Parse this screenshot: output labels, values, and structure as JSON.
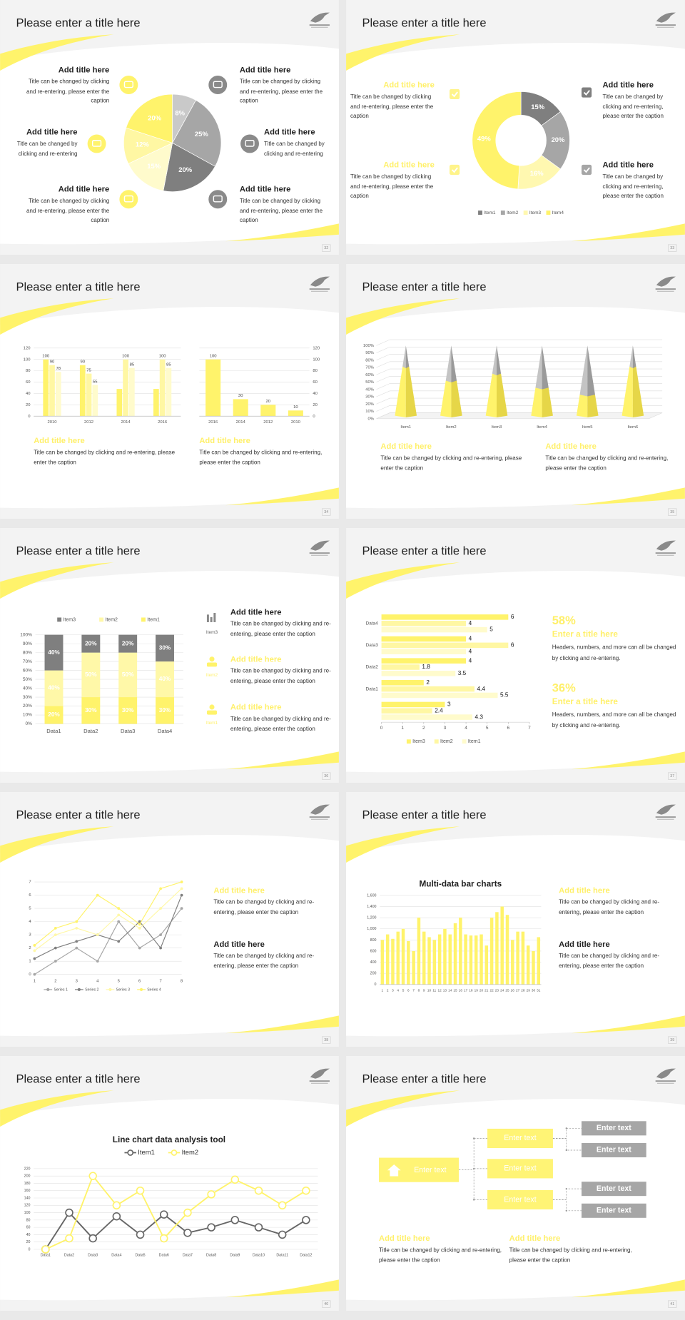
{
  "slides": [
    {
      "title": "Please enter a title here",
      "page": 32,
      "chart": {
        "type": "pie",
        "values": [
          8,
          25,
          20,
          15,
          12,
          20
        ],
        "value_labels": [
          "8%",
          "25%",
          "20%",
          "15%",
          "12%",
          "20%"
        ],
        "colors": [
          "#c9c9c9",
          "#a6a6a6",
          "#7f7f7f",
          "#fffbcc",
          "#fff7a3",
          "#fff36b"
        ]
      },
      "blocks": [
        {
          "heading": "Add title here",
          "text": "Title can be changed by clicking and re-entering, please enter the caption"
        },
        {
          "heading": "Add title here",
          "text": "Title can be changed by clicking and re-entering"
        },
        {
          "heading": "Add title here",
          "text": "Title can be changed by clicking and re-entering, please enter the caption"
        },
        {
          "heading": "Add title here",
          "text": "Title can be changed by clicking and re-entering, please enter the caption"
        },
        {
          "heading": "Add title here",
          "text": "Title can be changed by clicking and re-entering"
        },
        {
          "heading": "Add title here",
          "text": "Title can be changed by clicking and re-entering, please enter the caption"
        }
      ]
    },
    {
      "title": "Please enter a title here",
      "page": 33,
      "chart": {
        "type": "donut",
        "categories": [
          "Item1",
          "Item2",
          "Item3",
          "Item4"
        ],
        "values": [
          15,
          20,
          16,
          49
        ],
        "value_labels": [
          "15%",
          "20%",
          "16%",
          "49%"
        ],
        "colors": [
          "#7f7f7f",
          "#a6a6a6",
          "#fff8b0",
          "#fff36b"
        ]
      },
      "blocks": [
        {
          "heading": "Add title here",
          "text": "Title can be changed by clicking and re-entering, please enter the caption"
        },
        {
          "heading": "Add title here",
          "text": "Title can be changed by clicking and re-entering, please enter the caption"
        },
        {
          "heading": "Add title here",
          "text": "Title can be changed by clicking and re-entering, please enter the caption"
        },
        {
          "heading": "Add title here",
          "text": "Title can be changed by clicking and re-entering, please enter the caption"
        }
      ]
    },
    {
      "title": "Please enter a title here",
      "page": 34,
      "charts": [
        {
          "type": "bar",
          "categories": [
            "2010",
            "2012",
            "2014",
            "2016"
          ],
          "ylim": [
            0,
            120
          ],
          "yticks": [
            0,
            20,
            40,
            60,
            80,
            100,
            120
          ],
          "series": [
            {
              "color": "#fff36b",
              "values": [
                100,
                90,
                48,
                48
              ],
              "value_labels": [
                "100",
                "90",
                null,
                null
              ]
            },
            {
              "color": "#fff7a3",
              "values": [
                90,
                75,
                100,
                100
              ],
              "value_labels": [
                "90",
                "75",
                "100",
                "100"
              ]
            },
            {
              "color": "#fffbcc",
              "values": [
                78,
                55,
                85,
                85
              ],
              "value_labels": [
                "78",
                "55",
                "85",
                "85"
              ]
            }
          ]
        },
        {
          "type": "bar",
          "categories": [
            "2016",
            "2014",
            "2012",
            "2010"
          ],
          "values": [
            100,
            30,
            20,
            10
          ],
          "color": "#fff36b",
          "ylim": [
            0,
            120
          ],
          "yticks": [
            0,
            20,
            40,
            60,
            80,
            100,
            120
          ]
        }
      ],
      "blocks": [
        {
          "heading": "Add title here",
          "text": "Title can be changed by clicking and re-entering, please enter the caption"
        },
        {
          "heading": "Add title here",
          "text": "Title can be changed by clicking and re-entering, please enter the caption"
        }
      ]
    },
    {
      "title": "Please enter a title here",
      "page": 35,
      "chart": {
        "type": "cone",
        "categories": [
          "Item1",
          "Item2",
          "Item3",
          "Item4",
          "Item5",
          "Item6"
        ],
        "ylim": [
          0,
          100
        ],
        "yticks": [
          {
            "value": 0,
            "label": "0%"
          },
          {
            "value": 10,
            "label": "10%"
          },
          {
            "value": 20,
            "label": "20%"
          },
          {
            "value": 30,
            "label": "30%"
          },
          {
            "value": 40,
            "label": "40%"
          },
          {
            "value": 50,
            "label": "50%"
          },
          {
            "value": 60,
            "label": "60%"
          },
          {
            "value": 70,
            "label": "70%"
          },
          {
            "value": 80,
            "label": "80%"
          },
          {
            "value": 90,
            "label": "90%"
          },
          {
            "value": 100,
            "label": "100%"
          }
        ],
        "series": [
          {
            "color": "#fff36b",
            "values": [
              70,
              50,
              60,
              40,
              30,
              70
            ]
          },
          {
            "color": "#c4c4c4",
            "values": [
              30,
              50,
              40,
              60,
              70,
              30
            ]
          }
        ]
      },
      "blocks": [
        {
          "heading": "Add title here",
          "text": "Title can be changed by clicking and re-entering, please enter the caption"
        },
        {
          "heading": "Add title here",
          "text": "Title can be changed by clicking and re-entering, please enter the caption"
        }
      ]
    },
    {
      "title": "Please enter a title here",
      "page": 36,
      "chart": {
        "type": "stacked_bar",
        "categories": [
          "Data1",
          "Data2",
          "Data3",
          "Data4"
        ],
        "ylim": [
          0,
          100
        ],
        "yticks": [
          {
            "value": 0,
            "label": "0%"
          },
          {
            "value": 10,
            "label": "10%"
          },
          {
            "value": 20,
            "label": "20%"
          },
          {
            "value": 30,
            "label": "30%"
          },
          {
            "value": 40,
            "label": "40%"
          },
          {
            "value": 50,
            "label": "50%"
          },
          {
            "value": 60,
            "label": "60%"
          },
          {
            "value": 70,
            "label": "70%"
          },
          {
            "value": 80,
            "label": "80%"
          },
          {
            "value": 90,
            "label": "90%"
          },
          {
            "value": 100,
            "label": "100%"
          }
        ],
        "series": [
          {
            "name": "Item1",
            "color": "#fff36b",
            "values": [
              20,
              30,
              30,
              30
            ],
            "value_labels": [
              "20%",
              "30%",
              "30%",
              "30%"
            ]
          },
          {
            "name": "Item2",
            "color": "#fff8a8",
            "values": [
              40,
              50,
              50,
              40
            ],
            "value_labels": [
              "40%",
              "50%",
              "50%",
              "40%"
            ]
          },
          {
            "name": "Item3",
            "color": "#7f7f7f",
            "values": [
              40,
              20,
              20,
              30
            ],
            "value_labels": [
              "40%",
              "20%",
              "20%",
              "30%"
            ]
          }
        ]
      },
      "items": [
        {
          "label": "Item3",
          "heading": "Add title here",
          "text": "Title can be changed by clicking and re-entering, please enter the caption"
        },
        {
          "label": "Item2",
          "heading": "Add title here",
          "text": "Title can be changed by clicking and re-entering, please enter the caption"
        },
        {
          "label": "Item1",
          "heading": "Add title here",
          "text": "Title can be changed by clicking and re-entering, please enter the caption"
        }
      ]
    },
    {
      "title": "Please enter a title here",
      "page": 37,
      "chart": {
        "type": "hbar",
        "categories": [
          "Data4",
          "Data3",
          "Data2",
          "Data1",
          null
        ],
        "xlim": [
          0,
          7
        ],
        "xticks": [
          0,
          1,
          2,
          3,
          4,
          5,
          6,
          7
        ],
        "series": [
          {
            "name": "Item3",
            "color": "#fff36b",
            "values": [
              6,
              4,
              4,
              2,
              3
            ]
          },
          {
            "name": "Item2",
            "color": "#fff7a3",
            "values": [
              4,
              6,
              1.8,
              4.4,
              2.4
            ]
          },
          {
            "name": "Item1",
            "color": "#fffbcc",
            "values": [
              5,
              4,
              3.5,
              5.5,
              4.3
            ]
          }
        ]
      },
      "stats": [
        {
          "figure": "58%",
          "heading": "Enter a title here",
          "text": "Headers, numbers, and more can all be changed by clicking and re-entering."
        },
        {
          "figure": "36%",
          "heading": "Enter a title here",
          "text": "Headers, numbers, and more can all be changed by clicking and re-entering."
        }
      ]
    },
    {
      "title": "Please enter a title here",
      "page": 38,
      "chart": {
        "type": "line",
        "x": [
          1,
          2,
          3,
          4,
          5,
          6,
          7,
          8
        ],
        "xlim": [
          1,
          8
        ],
        "xticks": [
          1,
          2,
          3,
          4,
          5,
          6,
          7,
          8
        ],
        "ylim": [
          0,
          7
        ],
        "yticks": [
          0,
          1,
          2,
          3,
          4,
          5,
          6,
          7
        ],
        "series": [
          {
            "name": "Series 1",
            "color": "#a6a6a6",
            "values": [
              0,
              1,
              2,
              1,
              4,
              2,
              3,
              5
            ]
          },
          {
            "name": "Series 2",
            "color": "#7f7f7f",
            "values": [
              1.2,
              2,
              2.5,
              3,
              2.5,
              4,
              2,
              6
            ]
          },
          {
            "name": "Series 3",
            "color": "#fff8a8",
            "values": [
              1.8,
              3,
              3.5,
              3,
              4.5,
              3.5,
              5,
              6.5
            ]
          },
          {
            "name": "Series 4",
            "color": "#fff36b",
            "values": [
              2.2,
              3.5,
              4,
              6,
              5,
              3.8,
              6.5,
              7
            ]
          }
        ]
      },
      "blocks": [
        {
          "heading": "Add title here",
          "text": "Title can be changed by clicking and re-entering, please enter the caption"
        },
        {
          "heading": "Add title here",
          "text": "Title can be changed by clicking and re-entering, please enter the caption"
        }
      ]
    },
    {
      "title": "Please enter a title here",
      "page": 39,
      "chart": {
        "type": "bar",
        "title": "Multi-data bar charts",
        "color": "#fff36b",
        "categories": [
          "1",
          "2",
          "3",
          "4",
          "5",
          "6",
          "7",
          "8",
          "9",
          "10",
          "11",
          "12",
          "13",
          "14",
          "15",
          "16",
          "17",
          "18",
          "19",
          "20",
          "21",
          "22",
          "23",
          "24",
          "25",
          "26",
          "27",
          "28",
          "29",
          "30",
          "31"
        ],
        "values": [
          800,
          900,
          820,
          950,
          1000,
          780,
          600,
          1200,
          950,
          850,
          800,
          900,
          1000,
          900,
          1100,
          1200,
          900,
          880,
          880,
          900,
          700,
          1200,
          1300,
          1400,
          1250,
          800,
          950,
          950,
          700,
          600,
          850
        ],
        "ylim": [
          0,
          1600
        ],
        "yticks": [
          0,
          200,
          400,
          600,
          800,
          {
            "value": 1000,
            "label": "1,000"
          },
          {
            "value": 1200,
            "label": "1,200"
          },
          {
            "value": 1400,
            "label": "1,400"
          },
          {
            "value": 1600,
            "label": "1,600"
          }
        ]
      },
      "blocks": [
        {
          "heading": "Add title here",
          "text": "Title can be changed by clicking and re-entering, please enter the caption"
        },
        {
          "heading": "Add title here",
          "text": "Title can be changed by clicking and re-entering, please enter the caption"
        }
      ]
    },
    {
      "title": "Please enter a title here",
      "page": 40,
      "chart": {
        "type": "line",
        "title": "Line chart data analysis tool",
        "categories": [
          "Data1",
          "Data2",
          "Data3",
          "Data4",
          "Data5",
          "Data6",
          "Data7",
          "Data8",
          "Data9",
          "Data10",
          "Data11",
          "Data12"
        ],
        "ylim": [
          0,
          220
        ],
        "yticks": [
          0,
          20,
          40,
          60,
          80,
          100,
          120,
          140,
          160,
          180,
          200,
          220
        ],
        "series": [
          {
            "name": "Item1",
            "color": "#666666",
            "values": [
              0,
              100,
              30,
              90,
              40,
              95,
              45,
              60,
              80,
              60,
              40,
              80
            ]
          },
          {
            "name": "Item2",
            "color": "#fff36b",
            "values": [
              0,
              30,
              200,
              120,
              160,
              30,
              100,
              150,
              190,
              160,
              120,
              160
            ]
          }
        ]
      }
    },
    {
      "title": "Please enter a title here",
      "page": 41,
      "tree": {
        "label": "Enter text",
        "children": [
          {
            "label": "Enter text",
            "children": [
              {
                "label": "Enter text"
              },
              {
                "label": "Enter text"
              }
            ]
          },
          {
            "label": "Enter text",
            "children": []
          },
          {
            "label": "Enter text",
            "children": [
              {
                "label": "Enter text"
              },
              {
                "label": "Enter text"
              }
            ]
          }
        ]
      },
      "blocks": [
        {
          "heading": "Add title here",
          "text": "Title can be changed by clicking and re-entering, please enter the caption"
        },
        {
          "heading": "Add title here",
          "text": "Title can be changed by clicking and re-entering, please enter the caption"
        }
      ]
    }
  ]
}
